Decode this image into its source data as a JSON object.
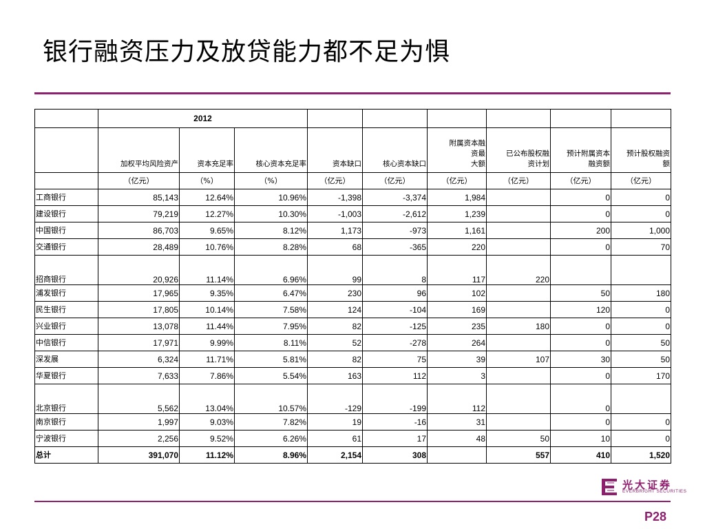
{
  "title": "银行融资压力及放贷能力都不足为惧",
  "page_number": "P28",
  "logo": {
    "cn": "光大证券",
    "en": "EVERBRIGHT SECURITIES",
    "color": "#8e1f6f"
  },
  "table": {
    "year": "2012",
    "headers": [
      "加权平均风险资产",
      "资本充足率",
      "核心资本充足率",
      "资本缺口",
      "核心资本缺口",
      "附属资本融资最大额",
      "已公布股权融资计划",
      "预计附属资本融资额",
      "预计股权融资额"
    ],
    "header_lines": [
      [
        "加权平均风险资产"
      ],
      [
        "资本充足率"
      ],
      [
        "核心资本充足率"
      ],
      [
        "资本缺口"
      ],
      [
        "核心资本缺口"
      ],
      [
        "附属资本融",
        "资最",
        "大额"
      ],
      [
        "已公布股权融",
        "资计划"
      ],
      [
        "预计附属资本",
        "融资额"
      ],
      [
        "预计股权融资",
        "额"
      ]
    ],
    "units": [
      "（亿元）",
      "（%）",
      "（%）",
      "（亿元）",
      "（亿元）",
      "（亿元）",
      "（亿元）",
      "（亿元）",
      "（亿元）"
    ],
    "rows": [
      {
        "bank": "工商银行",
        "values": [
          "85,143",
          "12.64%",
          "10.96%",
          "-1,398",
          "-3,374",
          "1,984",
          "",
          "0",
          "0"
        ]
      },
      {
        "bank": "建设银行",
        "values": [
          "79,219",
          "12.27%",
          "10.30%",
          "-1,003",
          "-2,612",
          "1,239",
          "",
          "0",
          "0"
        ]
      },
      {
        "bank": "中国银行",
        "values": [
          "86,703",
          "9.65%",
          "8.12%",
          "1,173",
          "-973",
          "1,161",
          "",
          "200",
          "1,000"
        ]
      },
      {
        "bank": "交通银行",
        "values": [
          "28,489",
          "10.76%",
          "8.28%",
          "68",
          "-365",
          "220",
          "",
          "0",
          "70"
        ]
      },
      {
        "bank": "招商银行",
        "values": [
          "20,926",
          "11.14%",
          "6.96%",
          "99",
          "8",
          "117",
          "220",
          "",
          ""
        ],
        "tall": true
      },
      {
        "bank": "浦发银行",
        "values": [
          "17,965",
          "9.35%",
          "6.47%",
          "230",
          "96",
          "102",
          "",
          "50",
          "180"
        ]
      },
      {
        "bank": "民生银行",
        "values": [
          "17,805",
          "10.14%",
          "7.58%",
          "124",
          "-104",
          "169",
          "",
          "120",
          "0"
        ]
      },
      {
        "bank": "兴业银行",
        "values": [
          "13,078",
          "11.44%",
          "7.95%",
          "82",
          "-125",
          "235",
          "180",
          "0",
          "0"
        ]
      },
      {
        "bank": "中信银行",
        "values": [
          "17,971",
          "9.99%",
          "8.11%",
          "52",
          "-278",
          "264",
          "",
          "0",
          "50"
        ]
      },
      {
        "bank": "深发展",
        "values": [
          "6,324",
          "11.71%",
          "5.81%",
          "82",
          "75",
          "39",
          "107",
          "30",
          "50"
        ]
      },
      {
        "bank": "华夏银行",
        "values": [
          "7,633",
          "7.86%",
          "5.54%",
          "163",
          "112",
          "3",
          "",
          "0",
          "170"
        ]
      },
      {
        "bank": "北京银行",
        "values": [
          "5,562",
          "13.04%",
          "10.57%",
          "-129",
          "-199",
          "112",
          "",
          "0",
          ""
        ],
        "tall": true
      },
      {
        "bank": "南京银行",
        "values": [
          "1,997",
          "9.03%",
          "7.82%",
          "19",
          "-16",
          "31",
          "",
          "0",
          "0"
        ]
      },
      {
        "bank": "宁波银行",
        "values": [
          "2,256",
          "9.52%",
          "6.26%",
          "61",
          "17",
          "48",
          "50",
          "10",
          "0"
        ]
      }
    ],
    "total": {
      "bank": "总计",
      "values": [
        "391,070",
        "11.12%",
        "8.96%",
        "2,154",
        "308",
        "",
        "557",
        "410",
        "1,520"
      ]
    }
  }
}
